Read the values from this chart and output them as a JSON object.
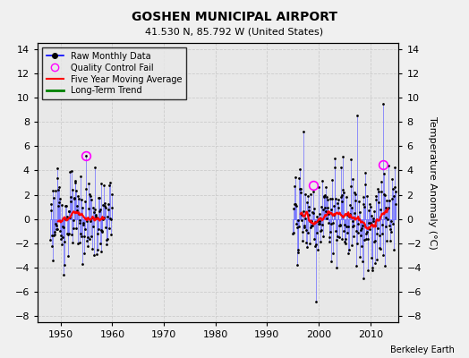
{
  "title": "GOSHEN MUNICIPAL AIRPORT",
  "subtitle": "41.530 N, 85.792 W (United States)",
  "ylabel": "Temperature Anomaly (°C)",
  "xlabel_credit": "Berkeley Earth",
  "ylim": [
    -8.5,
    14.5
  ],
  "xlim": [
    1945.5,
    2015.5
  ],
  "yticks": [
    -8,
    -6,
    -4,
    -2,
    0,
    2,
    4,
    6,
    8,
    10,
    12,
    14
  ],
  "xticks": [
    1950,
    1960,
    1970,
    1980,
    1990,
    2000,
    2010
  ],
  "plot_bg": "#e8e8e8",
  "fig_bg": "#f0f0f0",
  "grid_color": "#cccccc",
  "stem_color": "#7070ff",
  "dot_color": "black",
  "ma_color": "red",
  "trend_color": "green",
  "qc_color": "magenta",
  "early_start": 1948.0,
  "early_end": 1960.0,
  "late_start": 1995.0,
  "late_end": 2015.0
}
